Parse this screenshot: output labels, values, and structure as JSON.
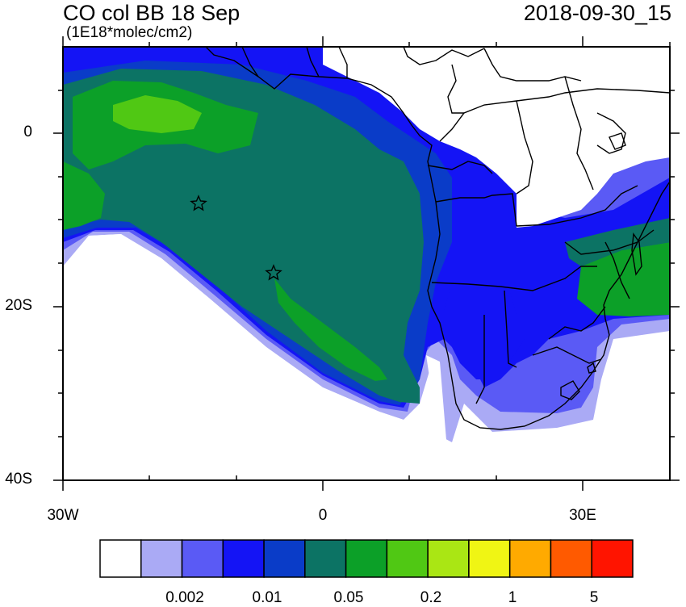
{
  "header": {
    "title": "CO col BB 18 Sep",
    "datetime": "2018-09-30_15",
    "units": "(1E18*molec/cm2)"
  },
  "axes": {
    "lat_labels": [
      "0",
      "20S",
      "40S"
    ],
    "lon_labels": [
      "30W",
      "0",
      "30E"
    ],
    "lon_range_deg": [
      -30,
      40
    ],
    "lat_range_deg": [
      -40,
      10
    ]
  },
  "colorbar": {
    "labels": [
      "0.002",
      "0.01",
      "0.05",
      "0.2",
      "1",
      "5"
    ],
    "colors": [
      "#ffffff",
      "#aaaaf5",
      "#5a5af5",
      "#1414f5",
      "#0a3cc8",
      "#0c7364",
      "#0ca028",
      "#50c814",
      "#aae614",
      "#f0f514",
      "#ffaa00",
      "#ff5a00",
      "#ff1400"
    ]
  },
  "markers": [
    {
      "name": "site-marker-1",
      "lon": -14.4,
      "lat": -7.9
    },
    {
      "name": "site-marker-2",
      "lon": -5.7,
      "lat": -16.0
    }
  ],
  "map": {
    "fill_colors": {
      "lightest": "#aaaaf5",
      "light": "#5a5af5",
      "mid": "#1414f5",
      "dark_blue": "#0a3cc8",
      "teal": "#0c7364",
      "green": "#0ca028",
      "lime": "#50c814"
    }
  }
}
